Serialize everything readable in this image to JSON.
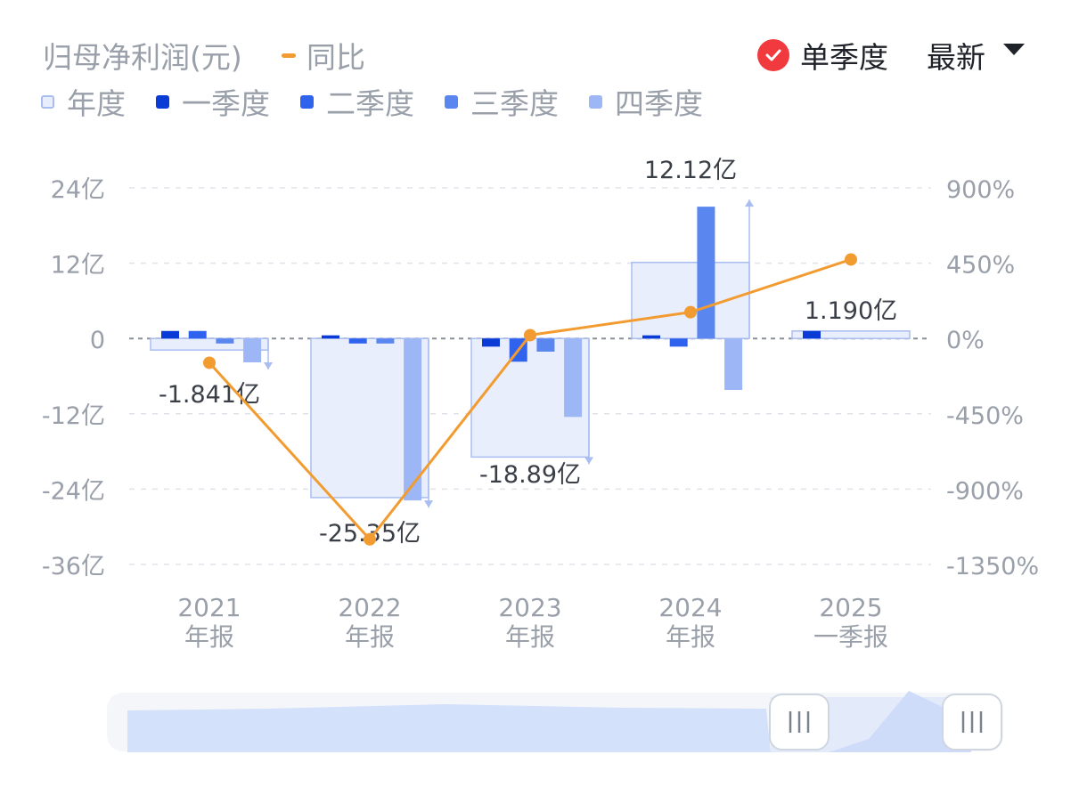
{
  "header": {
    "title": "归母净利润(元)",
    "yoy_legend": "同比",
    "toggle_label": "单季度",
    "sort_label": "最新"
  },
  "legend": [
    {
      "label": "年度",
      "color": "#e8eefc",
      "border": "#a9bdf0"
    },
    {
      "label": "一季度",
      "color": "#0b3bd6"
    },
    {
      "label": "二季度",
      "color": "#2f63ee"
    },
    {
      "label": "三季度",
      "color": "#5a86f0"
    },
    {
      "label": "四季度",
      "color": "#9db6f5"
    }
  ],
  "chart_data": {
    "type": "bar",
    "categories": [
      "2021\n年报",
      "2022\n年报",
      "2023\n年报",
      "2024\n年报",
      "2025\n一季报"
    ],
    "annual_values": [
      -1.841,
      -25.35,
      -18.89,
      12.12,
      1.19
    ],
    "annual_labels": [
      "-1.841亿",
      "-25.35亿",
      "-18.89亿",
      "12.12亿",
      "1.190亿"
    ],
    "series": [
      {
        "name": "一季度",
        "values": [
          1.2,
          0.5,
          -1.3,
          0.5,
          1.19
        ]
      },
      {
        "name": "二季度",
        "values": [
          1.2,
          -0.8,
          -3.7,
          -1.3,
          null
        ]
      },
      {
        "name": "三季度",
        "values": [
          -0.8,
          -0.8,
          -2.1,
          21.0,
          null
        ]
      },
      {
        "name": "四季度",
        "values": [
          -3.8,
          -25.8,
          -12.5,
          -8.2,
          null
        ]
      }
    ],
    "yoy": {
      "name": "同比",
      "values": [
        -145,
        -1200,
        20,
        157,
        472
      ]
    },
    "y_left": {
      "ticks": [
        "24亿",
        "12亿",
        "0",
        "-12亿",
        "-24亿",
        "-36亿"
      ],
      "tick_values": [
        24,
        12,
        0,
        -12,
        -24,
        -36
      ],
      "range": [
        -36,
        24
      ]
    },
    "y_right": {
      "ticks": [
        "900%",
        "450%",
        "0%",
        "-450%",
        "-900%",
        "-1350%"
      ],
      "tick_values": [
        900,
        450,
        0,
        -450,
        -900,
        -1350
      ],
      "range": [
        -1350,
        900
      ]
    },
    "grid": true,
    "legend_position": "top-left"
  }
}
